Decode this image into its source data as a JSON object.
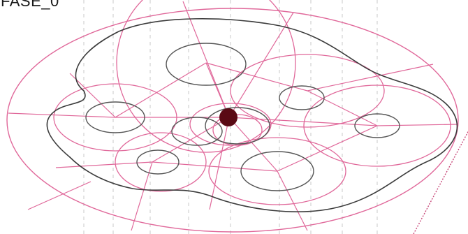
{
  "diagram": {
    "title": "FASE_0"
  },
  "colors": {
    "construction_lines": "#e0689a",
    "light_construction": "#f0a8c4",
    "outline": "#3c3c3c",
    "inner_circles": "#555555",
    "dash_guides": "#c8c8c8",
    "center_node": "#5a0a14",
    "background": "#ffffff"
  }
}
